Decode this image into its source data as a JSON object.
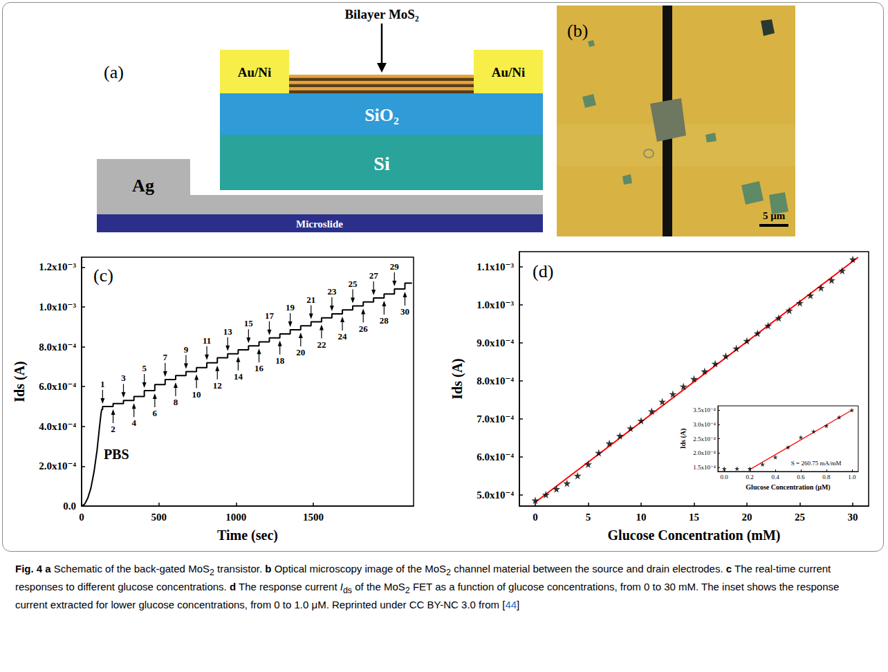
{
  "schematic": {
    "panel": "(a)",
    "labels": {
      "top": "Bilayer MoS₂",
      "contact_left": "Au/Ni",
      "contact_right": "Au/Ni",
      "oxide": "SiO₂",
      "substrate": "Si",
      "back_contact": "Ag",
      "slide": "Microslide"
    }
  },
  "micrograph": {
    "panel": "(b)",
    "scale_bar": "5 μm"
  },
  "chart_data": [
    {
      "type": "line",
      "panel": "(c)",
      "xlabel": "Time (sec)",
      "ylabel": "Ids (A)",
      "color": "#000000",
      "grid": false,
      "xlim": [
        0,
        2150
      ],
      "xticks": [
        0,
        500,
        1000,
        1500
      ],
      "ylim": [
        0,
        0.00125
      ],
      "yticks": [
        {
          "value": 0,
          "label": "0.0"
        },
        {
          "value": 0.0002,
          "label": "2.0x10⁻⁴"
        },
        {
          "value": 0.0004,
          "label": "4.0x10⁻⁴"
        },
        {
          "value": 0.0006,
          "label": "6.0x10⁻⁴"
        },
        {
          "value": 0.0008,
          "label": "8.0x10⁻⁴"
        },
        {
          "value": 0.001,
          "label": "1.0x10⁻³"
        },
        {
          "value": 0.0012,
          "label": "1.2x10⁻³"
        }
      ],
      "x": [
        0,
        20,
        40,
        60,
        80,
        100,
        115,
        125,
        130,
        136,
        136,
        204,
        204,
        271,
        271,
        339,
        339,
        406,
        406,
        474,
        474,
        541,
        541,
        609,
        609,
        676,
        676,
        744,
        744,
        811,
        811,
        879,
        879,
        946,
        946,
        1014,
        1014,
        1081,
        1081,
        1149,
        1149,
        1216,
        1216,
        1284,
        1284,
        1351,
        1351,
        1419,
        1419,
        1486,
        1486,
        1554,
        1554,
        1621,
        1621,
        1689,
        1689,
        1756,
        1756,
        1824,
        1824,
        1891,
        1891,
        1959,
        1959,
        2026,
        2026,
        2094,
        2094,
        2140
      ],
      "values": [
        0,
        1e-05,
        4e-05,
        9e-05,
        0.00017,
        0.00028,
        0.00039,
        0.00046,
        0.000485,
        0.000485,
        0.0005,
        0.0005,
        0.000515,
        0.000515,
        0.00053,
        0.00053,
        0.00055,
        0.00055,
        0.00058,
        0.00058,
        0.00061,
        0.00061,
        0.000635,
        0.000635,
        0.000655,
        0.000655,
        0.000675,
        0.000675,
        0.000695,
        0.000695,
        0.00072,
        0.00072,
        0.000745,
        0.000745,
        0.000765,
        0.000765,
        0.000785,
        0.000785,
        0.000805,
        0.000805,
        0.000825,
        0.000825,
        0.000845,
        0.000845,
        0.000865,
        0.000865,
        0.000885,
        0.000885,
        0.000905,
        0.000905,
        0.000925,
        0.000925,
        0.000945,
        0.000945,
        0.000965,
        0.000965,
        0.000985,
        0.000985,
        0.001005,
        0.001005,
        0.001025,
        0.001025,
        0.001045,
        0.001045,
        0.001065,
        0.001065,
        0.00109,
        0.00109,
        0.00112,
        0.00112
      ],
      "annotations": [
        {
          "text": "PBS",
          "x": 225,
          "y": 0.00026
        }
      ],
      "arrows_above": [
        {
          "text": "1",
          "x": 136,
          "y": 0.0005
        },
        {
          "text": "3",
          "x": 271,
          "y": 0.00053
        },
        {
          "text": "5",
          "x": 406,
          "y": 0.00058
        },
        {
          "text": "7",
          "x": 541,
          "y": 0.000635
        },
        {
          "text": "9",
          "x": 676,
          "y": 0.000675
        },
        {
          "text": "11",
          "x": 811,
          "y": 0.00072
        },
        {
          "text": "13",
          "x": 946,
          "y": 0.000765
        },
        {
          "text": "15",
          "x": 1081,
          "y": 0.000805
        },
        {
          "text": "17",
          "x": 1216,
          "y": 0.000845
        },
        {
          "text": "19",
          "x": 1351,
          "y": 0.000885
        },
        {
          "text": "21",
          "x": 1486,
          "y": 0.000925
        },
        {
          "text": "23",
          "x": 1621,
          "y": 0.000965
        },
        {
          "text": "25",
          "x": 1756,
          "y": 0.001005
        },
        {
          "text": "27",
          "x": 1891,
          "y": 0.001045
        },
        {
          "text": "29",
          "x": 2026,
          "y": 0.00109
        }
      ],
      "arrows_below": [
        {
          "text": "2",
          "x": 204,
          "y": 0.0005
        },
        {
          "text": "4",
          "x": 339,
          "y": 0.00053
        },
        {
          "text": "6",
          "x": 474,
          "y": 0.00058
        },
        {
          "text": "8",
          "x": 609,
          "y": 0.000635
        },
        {
          "text": "10",
          "x": 744,
          "y": 0.000675
        },
        {
          "text": "12",
          "x": 879,
          "y": 0.00072
        },
        {
          "text": "14",
          "x": 1014,
          "y": 0.000765
        },
        {
          "text": "16",
          "x": 1149,
          "y": 0.000805
        },
        {
          "text": "18",
          "x": 1284,
          "y": 0.000845
        },
        {
          "text": "20",
          "x": 1419,
          "y": 0.000885
        },
        {
          "text": "22",
          "x": 1554,
          "y": 0.000925
        },
        {
          "text": "24",
          "x": 1689,
          "y": 0.000965
        },
        {
          "text": "26",
          "x": 1824,
          "y": 0.001005
        },
        {
          "text": "28",
          "x": 1959,
          "y": 0.001045
        },
        {
          "text": "30",
          "x": 2094,
          "y": 0.00109
        }
      ]
    },
    {
      "type": "scatter",
      "panel": "(d)",
      "xlabel": "Glucose Concentration (mM)",
      "ylabel": "Ids (A)",
      "color": "#000000",
      "marker": "star",
      "grid": false,
      "xlim": [
        -1.5,
        31.5
      ],
      "xticks": [
        0,
        5,
        10,
        15,
        20,
        25,
        30
      ],
      "ylim": [
        0.00047,
        0.00114
      ],
      "yticks": [
        {
          "value": 0.0005,
          "label": "5.0x10⁻⁴"
        },
        {
          "value": 0.0006,
          "label": "6.0x10⁻⁴"
        },
        {
          "value": 0.0007,
          "label": "7.0x10⁻⁴"
        },
        {
          "value": 0.0008,
          "label": "8.0x10⁻⁴"
        },
        {
          "value": 0.0009,
          "label": "9.0x10⁻⁴"
        },
        {
          "value": 0.001,
          "label": "1.0x10⁻³"
        },
        {
          "value": 0.0011,
          "label": "1.1x10⁻³"
        }
      ],
      "x": [
        0,
        1,
        2,
        3,
        4,
        5,
        6,
        7,
        8,
        9,
        10,
        11,
        12,
        13,
        14,
        15,
        16,
        17,
        18,
        19,
        20,
        21,
        22,
        23,
        24,
        25,
        26,
        27,
        28,
        29,
        30
      ],
      "values": [
        0.000485,
        0.0005,
        0.000515,
        0.00053,
        0.00055,
        0.00058,
        0.00061,
        0.000635,
        0.000655,
        0.000675,
        0.000695,
        0.00072,
        0.000745,
        0.000765,
        0.000785,
        0.000805,
        0.000825,
        0.000845,
        0.000865,
        0.000885,
        0.000905,
        0.000925,
        0.000945,
        0.000965,
        0.000985,
        0.001005,
        0.001025,
        0.001045,
        0.001065,
        0.00109,
        0.00112
      ],
      "fit": {
        "type": "line",
        "color": "#ff0000",
        "line_style": "solid",
        "x": [
          0,
          30.5
        ],
        "values": [
          0.00048,
          0.001125
        ]
      },
      "inset": {
        "type": "scatter",
        "xlabel": "Glucose Concentration (μM)",
        "ylabel": "Ids (A)",
        "color": "#000000",
        "marker": "star",
        "grid": false,
        "xlim": [
          -0.05,
          1.05
        ],
        "xticks": [
          {
            "value": 0,
            "label": "0.0"
          },
          0.2,
          0.4,
          0.6,
          0.8,
          {
            "value": 1,
            "label": "1.0"
          }
        ],
        "ylim": [
          0.000135,
          0.000365
        ],
        "yticks": [
          {
            "value": 0.00015,
            "label": "1.5x10⁻⁴"
          },
          {
            "value": 0.0002,
            "label": "2.0x10⁻⁴"
          },
          {
            "value": 0.00025,
            "label": "2.5x10⁻⁴"
          },
          {
            "value": 0.0003,
            "label": "3.0x10⁻⁴"
          },
          {
            "value": 0.00035,
            "label": "3.5x10⁻⁴"
          }
        ],
        "x": [
          0,
          0.1,
          0.2,
          0.3,
          0.4,
          0.5,
          0.6,
          0.7,
          0.8,
          0.9,
          1.0
        ],
        "values": [
          0.000145,
          0.000145,
          0.000145,
          0.00016,
          0.000185,
          0.00022,
          0.000255,
          0.000275,
          0.000295,
          0.000325,
          0.00035
        ],
        "fit": {
          "type": "line",
          "color": "#ff0000",
          "line_style": "solid",
          "x": [
            0.2,
            1.0
          ],
          "values": [
            0.000142,
            0.00035
          ]
        },
        "annotations": [
          {
            "text": "S = 260.75 mA/mM",
            "x": 0.72,
            "y": 0.000165
          }
        ]
      }
    }
  ],
  "caption": [
    {
      "text": "Fig. 4",
      "style": "bold"
    },
    {
      "text": " "
    },
    {
      "text": "a",
      "style": "bold"
    },
    {
      "text": " Schematic of the back-gated MoS"
    },
    {
      "text": "2",
      "style": "sub"
    },
    {
      "text": " transistor. "
    },
    {
      "text": "b",
      "style": "bold"
    },
    {
      "text": " Optical microscopy image of the MoS"
    },
    {
      "text": "2",
      "style": "sub"
    },
    {
      "text": " channel material between the source and drain electrodes. "
    },
    {
      "text": "c",
      "style": "bold"
    },
    {
      "text": " The real-time current responses to different glucose concentrations. "
    },
    {
      "text": "d",
      "style": "bold"
    },
    {
      "text": " The response current "
    },
    {
      "text": "I",
      "style": "italic"
    },
    {
      "text": "ds",
      "style": "sub"
    },
    {
      "text": " of the MoS"
    },
    {
      "text": "2",
      "style": "sub"
    },
    {
      "text": " FET as a function of glucose concentrations, from 0 to 30 mM. The inset shows the response current extracted for lower glucose concentrations, from 0 to 1.0 μM. Reprinted under CC BY-NC 3.0 from ["
    },
    {
      "text": "44",
      "style": "link"
    },
    {
      "text": "]"
    }
  ]
}
